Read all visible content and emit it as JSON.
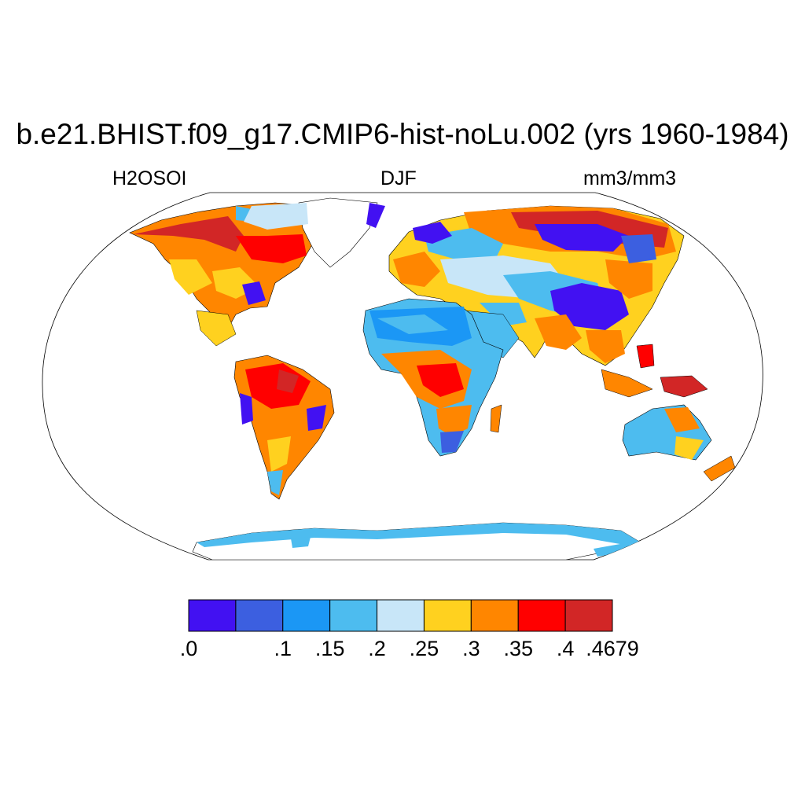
{
  "title": "b.e21.BHIST.f09_g17.CMIP6-hist-noLu.002 (yrs 1960-1984)",
  "variable": "H2OSOI",
  "season": "DJF",
  "units": "mm3/mm3",
  "projection": "Robinson",
  "colorbar": {
    "labels": [
      ".0",
      ".1",
      ".15",
      ".2",
      ".25",
      ".3",
      ".35",
      ".4",
      ".4679"
    ],
    "colors": [
      "#4211f2",
      "#3c5fe0",
      "#1b97f5",
      "#4dbcef",
      "#c8e6f8",
      "#ffd11f",
      "#ff8600",
      "#ff0000",
      "#d22626"
    ]
  },
  "colors": {
    "background": "#ffffff",
    "ocean": "#ffffff",
    "coastline": "#000000"
  }
}
